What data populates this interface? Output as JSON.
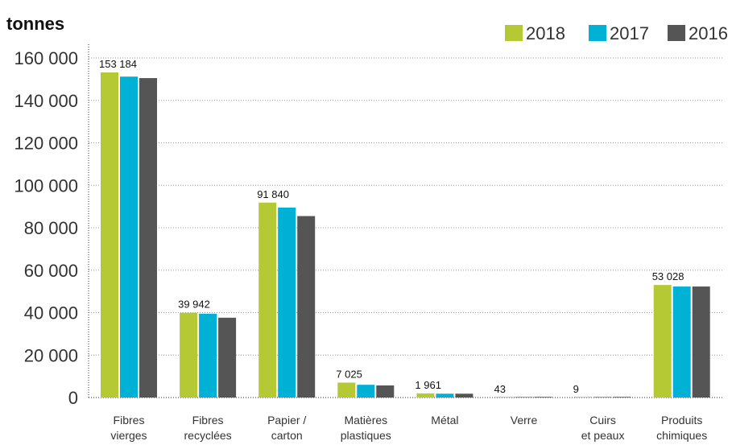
{
  "chart_data": {
    "type": "bar",
    "ylabel": "tonnes",
    "ylim": [
      0,
      160000
    ],
    "yticks": [
      {
        "value": 0,
        "label": "0"
      },
      {
        "value": 20000,
        "label": "20 000"
      },
      {
        "value": 40000,
        "label": "40 000"
      },
      {
        "value": 60000,
        "label": "60 000"
      },
      {
        "value": 80000,
        "label": "80 000"
      },
      {
        "value": 100000,
        "label": "100 000"
      },
      {
        "value": 120000,
        "label": "120 000"
      },
      {
        "value": 140000,
        "label": "140 000"
      },
      {
        "value": 160000,
        "label": "160 000"
      }
    ],
    "grid": true,
    "legend_position": "top-right",
    "categories": [
      [
        "Fibres",
        "vierges"
      ],
      [
        "Fibres",
        "recyclées"
      ],
      [
        "Papier /",
        "carton"
      ],
      [
        "Matières",
        "plastiques"
      ],
      [
        "Métal"
      ],
      [
        "Verre"
      ],
      [
        "Cuirs",
        "et peaux"
      ],
      [
        "Produits",
        "chimiques"
      ]
    ],
    "series": [
      {
        "name": "2018",
        "color": "#b5c934",
        "values": [
          153184,
          39942,
          91840,
          7025,
          1961,
          43,
          9,
          53028
        ]
      },
      {
        "name": "2017",
        "color": "#00b1d6",
        "values": [
          151200,
          39500,
          89500,
          6000,
          1800,
          40,
          8,
          52300
        ]
      },
      {
        "name": "2016",
        "color": "#555555",
        "values": [
          150500,
          37600,
          85500,
          5700,
          1800,
          40,
          8,
          52300
        ]
      }
    ],
    "data_labels": [
      "153 184",
      "39 942",
      "91 840",
      "7 025",
      "1 961",
      "43",
      "9",
      "53 028"
    ]
  }
}
